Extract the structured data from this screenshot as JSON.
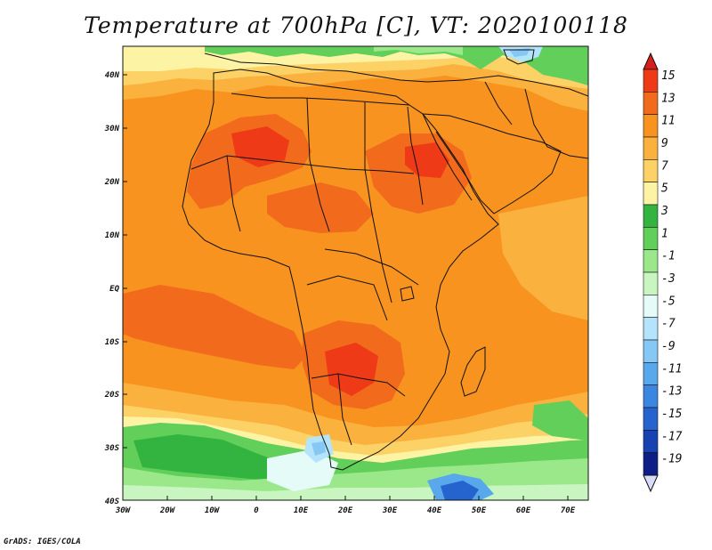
{
  "title": "Temperature at 700hPa [C], VT: 2020100118",
  "credit": "GrADS: IGES/COLA",
  "lat_labels": [
    "40N",
    "30N",
    "20N",
    "10N",
    "EQ",
    "10S",
    "20S",
    "30S",
    "40S"
  ],
  "lon_labels": [
    "30W",
    "20W",
    "10W",
    "0",
    "10E",
    "20E",
    "30E",
    "40E",
    "50E",
    "60E",
    "70E"
  ],
  "colorbar": {
    "labels": [
      "15",
      "13",
      "11",
      "9",
      "7",
      "5",
      "3",
      "1",
      "-1",
      "-3",
      "-5",
      "-7",
      "-9",
      "-11",
      "-13",
      "-15",
      "-17",
      "-19"
    ],
    "colors": [
      "#d6201b",
      "#ee3a16",
      "#f26a1b",
      "#f7931e",
      "#fbb13e",
      "#fcd266",
      "#fdf3a4",
      "#33b33f",
      "#62cf5a",
      "#9ae88a",
      "#c9f6c0",
      "#e4fbf8",
      "#b3e4fb",
      "#85c8f5",
      "#5aa8ec",
      "#3b86e0",
      "#2563cf",
      "#1842b1",
      "#0d1f86",
      "#d7dcf9"
    ]
  },
  "map_colors": {
    "hot": "#ee3a16",
    "warm": "#f7931e",
    "mild": "#fbb13e",
    "pale": "#fcd266",
    "cream": "#fdf3a4",
    "green": "#62cf5a",
    "darkgreen": "#33b33f",
    "lightgreen": "#9ae88a",
    "mint": "#c9f6c0",
    "cyan": "#e4fbf8",
    "lightblue": "#b3e4fb",
    "blue": "#5aa8ec",
    "deepblue": "#2563cf",
    "red": "#d6201b"
  }
}
